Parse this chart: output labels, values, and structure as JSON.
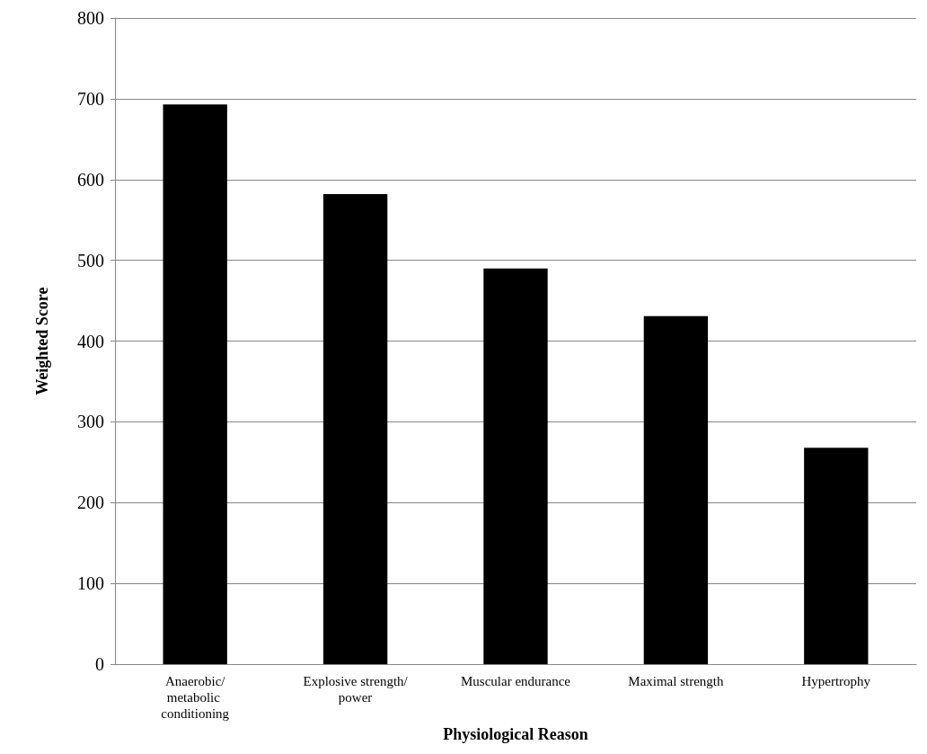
{
  "chart_data": {
    "type": "bar",
    "xlabel": "Physiological Reason",
    "ylabel": "Weighted Score",
    "categories": [
      "Anaerobic/metabolic conditioning",
      "Explosive strength/power",
      "Muscular endurance",
      "Maximal strength",
      "Hypertrophy"
    ],
    "values": [
      693,
      582,
      490,
      431,
      268
    ],
    "color": "#000000",
    "ylim": [
      0,
      800
    ],
    "yticks": [
      0,
      100,
      200,
      300,
      400,
      500,
      600,
      700,
      800
    ],
    "grid": "y"
  }
}
